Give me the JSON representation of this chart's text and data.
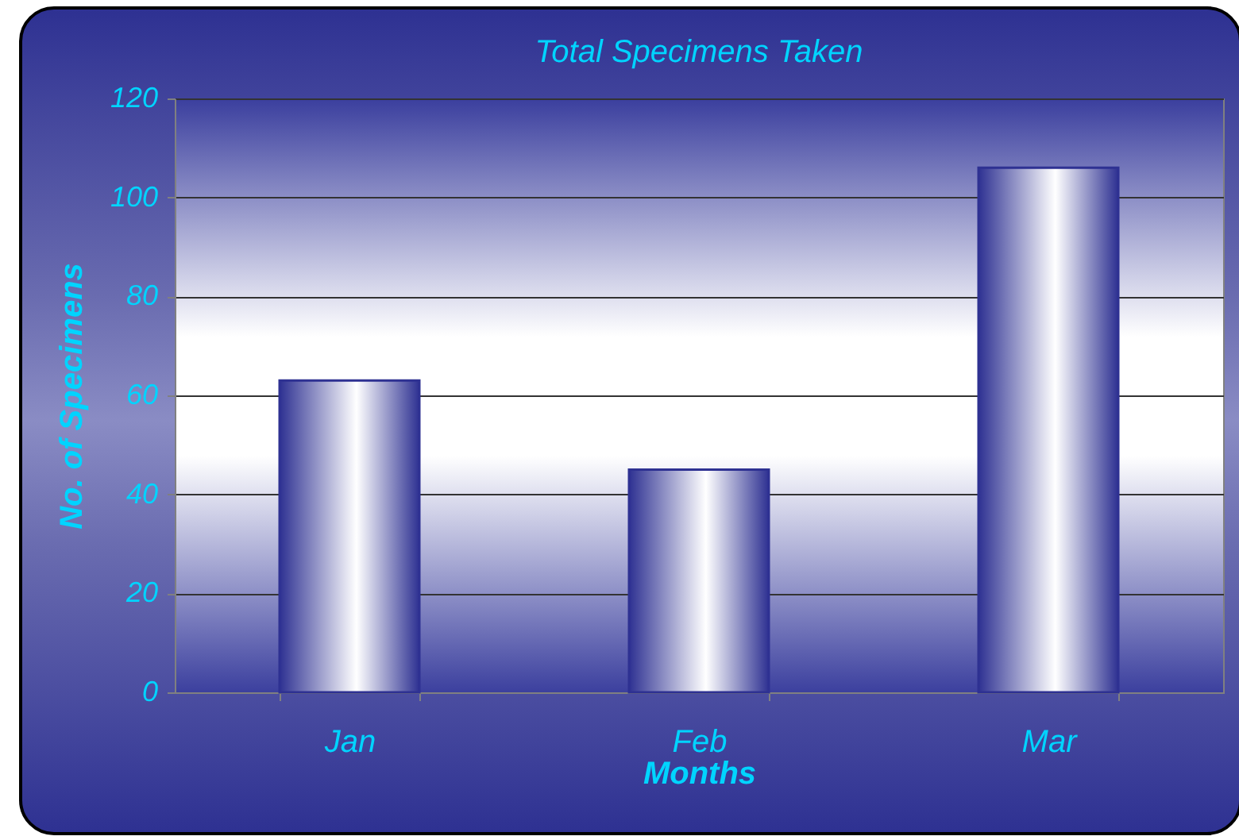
{
  "chart_data": {
    "type": "bar",
    "title": "Total Specimens Taken",
    "xlabel": "Months",
    "ylabel": "No. of Specimens",
    "categories": [
      "Jan",
      "Feb",
      "Mar"
    ],
    "values": [
      63,
      45,
      106
    ],
    "color": "#2e3192",
    "ylim": [
      0,
      120
    ],
    "yticks": [
      0,
      20,
      40,
      60,
      80,
      100,
      120
    ],
    "grid": "y"
  }
}
